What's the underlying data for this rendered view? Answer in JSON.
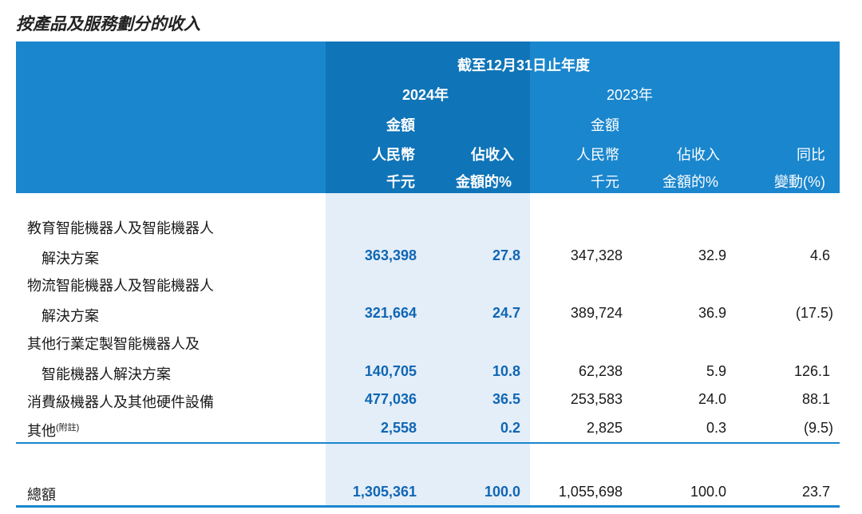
{
  "title": "按產品及服務劃分的收入",
  "header": {
    "period": "截至12月31日止年度",
    "year_2024": "2024年",
    "year_2023": "2023年",
    "amount": "金額",
    "currency": "人民幣",
    "unit": "千元",
    "share_line1": "佔收入",
    "share_line2": "金額的%",
    "change_line1": "同比",
    "change_line2": "變動(%)"
  },
  "rows": [
    {
      "label1": "教育智能機器人及智能機器人",
      "label2": "解決方案",
      "amt_2024": "363,398",
      "pct_2024": "27.8",
      "amt_2023": "347,328",
      "pct_2023": "32.9",
      "change": "4.6"
    },
    {
      "label1": "物流智能機器人及智能機器人",
      "label2": "解決方案",
      "amt_2024": "321,664",
      "pct_2024": "24.7",
      "amt_2023": "389,724",
      "pct_2023": "36.9",
      "change": "(17.5)"
    },
    {
      "label1": "其他行業定製智能機器人及",
      "label2": "智能機器人解決方案",
      "amt_2024": "140,705",
      "pct_2024": "10.8",
      "amt_2023": "62,238",
      "pct_2023": "5.9",
      "change": "126.1"
    },
    {
      "label1": "消費級機器人及其他硬件設備",
      "amt_2024": "477,036",
      "pct_2024": "36.5",
      "amt_2023": "253,583",
      "pct_2023": "24.0",
      "change": "88.1"
    },
    {
      "label1": "其他",
      "note": "(附註)",
      "amt_2024": "2,558",
      "pct_2024": "0.2",
      "amt_2023": "2,825",
      "pct_2023": "0.3",
      "change": "(9.5)"
    }
  ],
  "total": {
    "label": "總額",
    "amt_2024": "1,305,361",
    "pct_2024": "100.0",
    "amt_2023": "1,055,698",
    "pct_2023": "100.0",
    "change": "23.7"
  }
}
